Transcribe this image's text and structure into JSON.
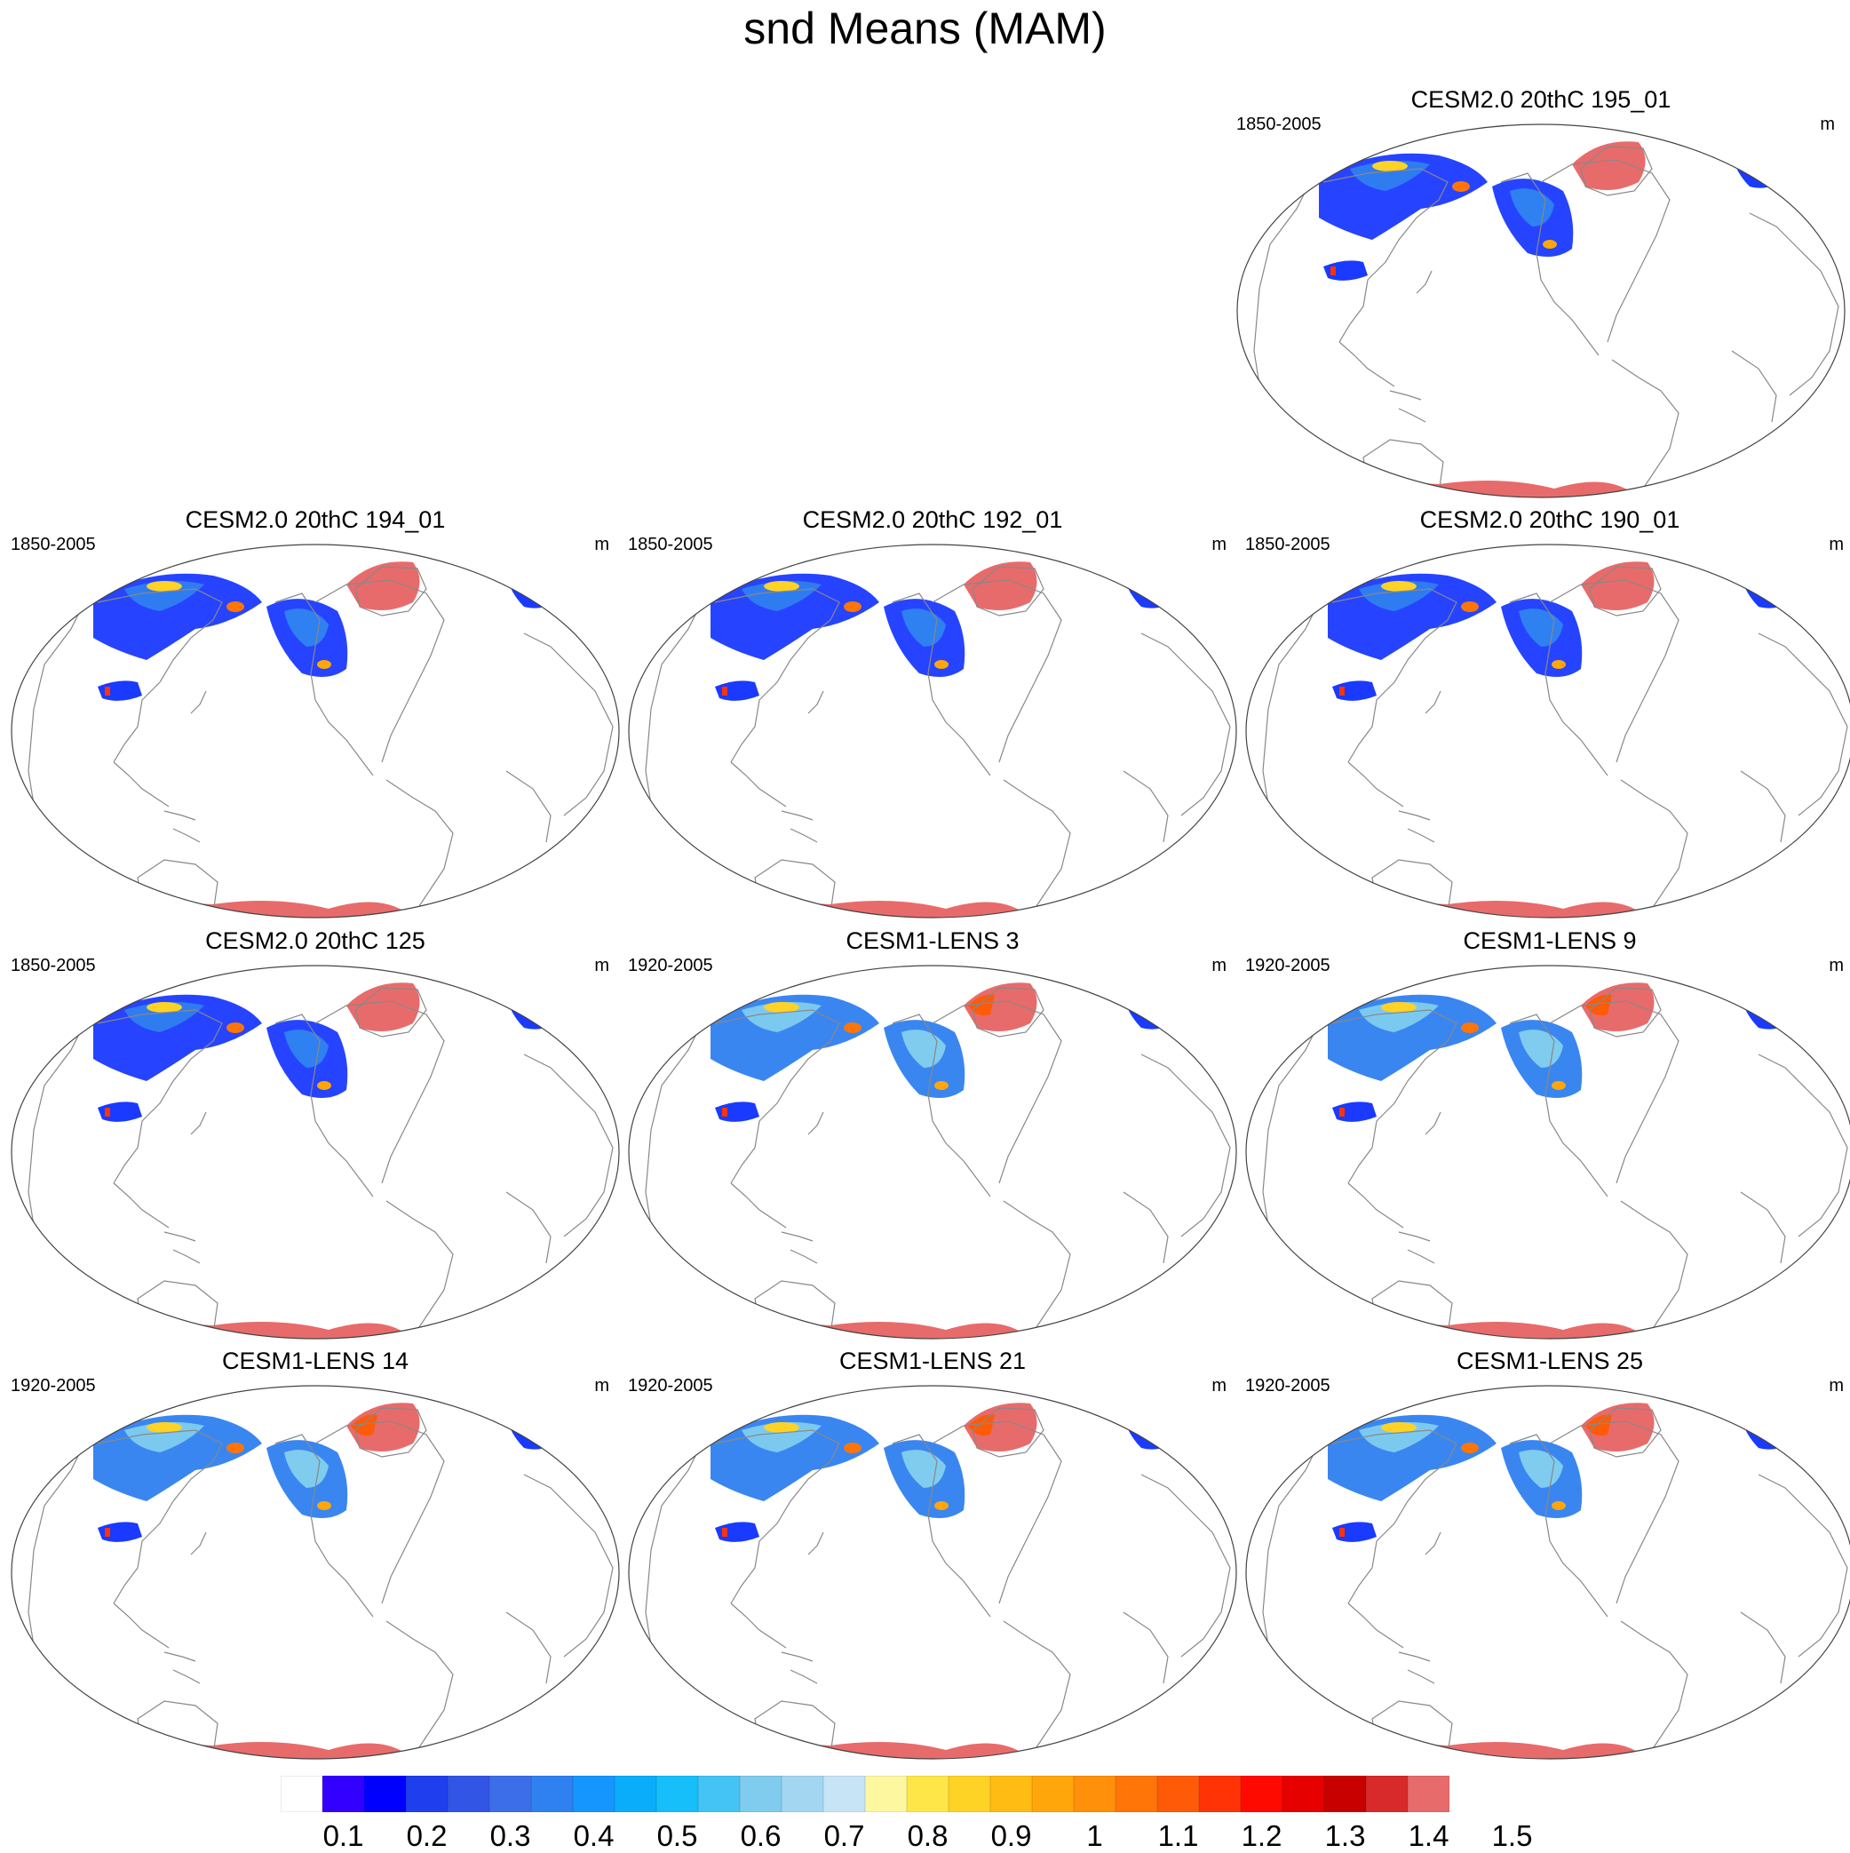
{
  "figure": {
    "title": "snd Means (MAM)",
    "unit": "m"
  },
  "panels": [
    {
      "title": "CESM2.0 20thC 195_01",
      "years": "1850-2005",
      "unit": "m",
      "type": "cesm2"
    },
    {
      "title": "CESM2.0 20thC 194_01",
      "years": "1850-2005",
      "unit": "m",
      "type": "cesm2"
    },
    {
      "title": "CESM2.0 20thC 192_01",
      "years": "1850-2005",
      "unit": "m",
      "type": "cesm2"
    },
    {
      "title": "CESM2.0 20thC 190_01",
      "years": "1850-2005",
      "unit": "m",
      "type": "cesm2"
    },
    {
      "title": "CESM2.0 20thC 125",
      "years": "1850-2005",
      "unit": "m",
      "type": "cesm2"
    },
    {
      "title": "CESM1-LENS 3",
      "years": "1920-2005",
      "unit": "m",
      "type": "lens"
    },
    {
      "title": "CESM1-LENS 9",
      "years": "1920-2005",
      "unit": "m",
      "type": "lens"
    },
    {
      "title": "CESM1-LENS 14",
      "years": "1920-2005",
      "unit": "m",
      "type": "lens"
    },
    {
      "title": "CESM1-LENS 21",
      "years": "1920-2005",
      "unit": "m",
      "type": "lens"
    },
    {
      "title": "CESM1-LENS 25",
      "years": "1920-2005",
      "unit": "m",
      "type": "lens"
    }
  ],
  "colorbar": {
    "labels": [
      "0.1",
      "0.2",
      "0.3",
      "0.4",
      "0.5",
      "0.6",
      "0.7",
      "0.8",
      "0.9",
      "1",
      "1.1",
      "1.2",
      "1.3",
      "1.4",
      "1.5"
    ],
    "colors": [
      "#ffffff",
      "#3300ff",
      "#0000ff",
      "#1f3fef",
      "#3355e6",
      "#3b6ee8",
      "#2f80f0",
      "#1596ff",
      "#0aadfa",
      "#16befa",
      "#43c4f5",
      "#7fccef",
      "#a3d6f1",
      "#c6e4f6",
      "#fdf8a0",
      "#ffe648",
      "#ffd226",
      "#ffbd14",
      "#ffa60a",
      "#ff9009",
      "#ff7508",
      "#ff5a07",
      "#ff3305",
      "#ff0a00",
      "#e60000",
      "#c90000",
      "#d82a2a",
      "#e86b6b"
    ]
  }
}
